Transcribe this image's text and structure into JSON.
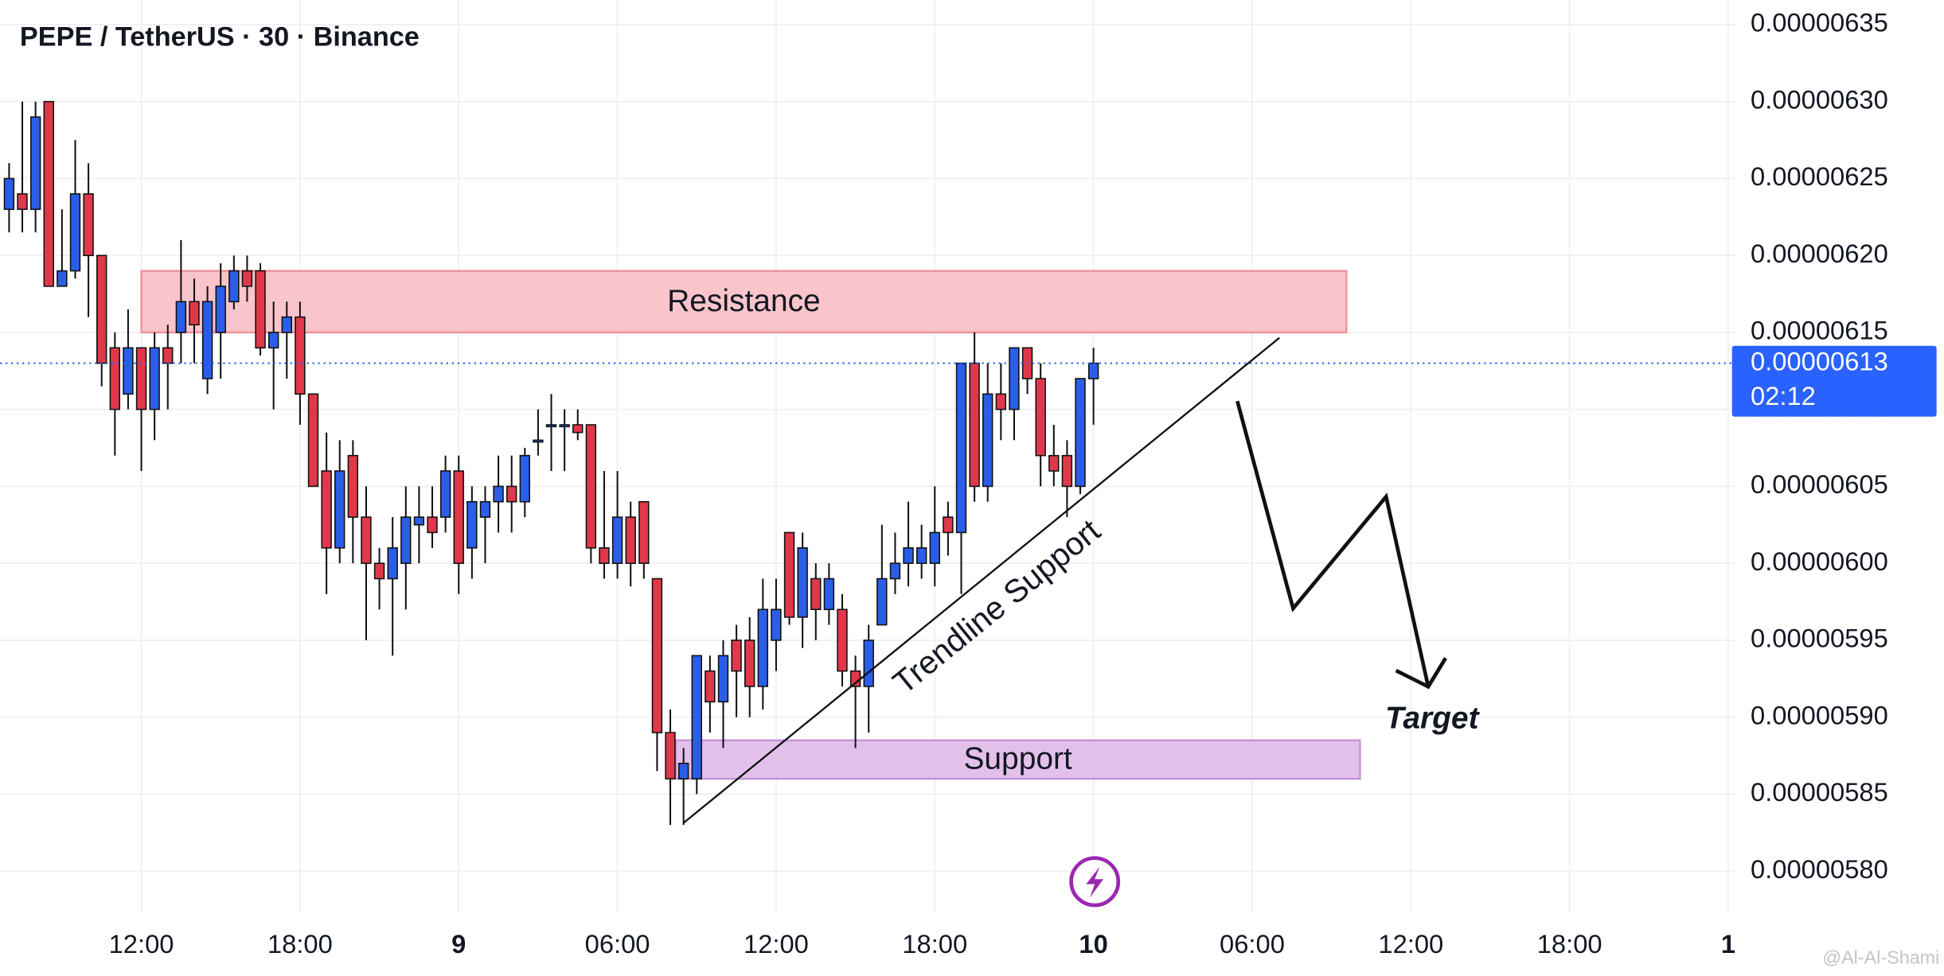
{
  "chart_data": {
    "type": "candlestick",
    "title": "PEPE / TetherUS · 30 · Binance",
    "up_color": "#2a5ee8",
    "down_color": "#e0384a",
    "categories": [
      "12:00",
      "18:00",
      "9",
      "06:00",
      "12:00",
      "18:00",
      "10",
      "06:00",
      "12:00",
      "18:00",
      "1"
    ],
    "ylim": [
      5.773e-06,
      6.366e-06
    ],
    "yticks": [
      {
        "value": 5.8e-06,
        "label": "0.00000580"
      },
      {
        "value": 5.85e-06,
        "label": "0.00000585"
      },
      {
        "value": 5.9e-06,
        "label": "0.00000590"
      },
      {
        "value": 5.95e-06,
        "label": "0.00000595"
      },
      {
        "value": 6e-06,
        "label": "0.00000600"
      },
      {
        "value": 6.05e-06,
        "label": "0.00000605"
      },
      {
        "value": 6.1e-06,
        "label": "0.00000610"
      },
      {
        "value": 6.15e-06,
        "label": "0.00000615"
      },
      {
        "value": 6.2e-06,
        "label": "0.00000620"
      },
      {
        "value": 6.25e-06,
        "label": "0.00000625"
      },
      {
        "value": 6.3e-06,
        "label": "0.00000630"
      },
      {
        "value": 6.35e-06,
        "label": "0.00000635"
      }
    ],
    "grid": true,
    "open": [
      6.23e-06,
      6.24e-06,
      6.23e-06,
      6.3e-06,
      6.18e-06,
      6.19e-06,
      6.24e-06,
      6.2e-06,
      6.14e-06,
      6.11e-06,
      6.14e-06,
      6.1e-06,
      6.14e-06,
      6.15e-06,
      6.17e-06,
      6.12e-06,
      6.15e-06,
      6.17e-06,
      6.19e-06,
      6.19e-06,
      6.14e-06,
      6.15e-06,
      6.16e-06,
      6.11e-06,
      6.06e-06,
      6.01e-06,
      6.07e-06,
      6.03e-06,
      6e-06,
      5.99e-06,
      6e-06,
      6.025e-06,
      6.03e-06,
      6.03e-06,
      6.06e-06,
      6.01e-06,
      6.03e-06,
      6.04e-06,
      6.05e-06,
      6.04e-06,
      6.08e-06,
      6.09e-06,
      6.09e-06,
      6.09e-06,
      6.09e-06,
      6.01e-06,
      6e-06,
      6.03e-06,
      6.04e-06,
      5.99e-06,
      5.89e-06,
      5.86e-06,
      5.86e-06,
      5.93e-06,
      5.91e-06,
      5.95e-06,
      5.95e-06,
      5.92e-06,
      5.95e-06,
      6.02e-06,
      5.965e-06,
      5.99e-06,
      5.97e-06,
      5.97e-06,
      5.93e-06,
      5.92e-06,
      5.96e-06,
      5.99e-06,
      6e-06,
      6e-06,
      6e-06,
      6.03e-06,
      6.02e-06,
      6.13e-06,
      6.05e-06,
      6.11e-06,
      6.1e-06,
      6.14e-06,
      6.12e-06,
      6.07e-06,
      6.07e-06,
      6.05e-06,
      6.12e-06
    ],
    "high": [
      6.26e-06,
      6.3e-06,
      6.3e-06,
      6.3e-06,
      6.23e-06,
      6.275e-06,
      6.26e-06,
      6.2e-06,
      6.15e-06,
      6.165e-06,
      6.14e-06,
      6.15e-06,
      6.155e-06,
      6.21e-06,
      6.185e-06,
      6.18e-06,
      6.195e-06,
      6.2e-06,
      6.2e-06,
      6.195e-06,
      6.17e-06,
      6.17e-06,
      6.17e-06,
      6.11e-06,
      6.085e-06,
      6.08e-06,
      6.08e-06,
      6.05e-06,
      6.01e-06,
      6.03e-06,
      6.05e-06,
      6.05e-06,
      6.05e-06,
      6.07e-06,
      6.07e-06,
      6.05e-06,
      6.05e-06,
      6.07e-06,
      6.07e-06,
      6.075e-06,
      6.1e-06,
      6.11e-06,
      6.1e-06,
      6.1e-06,
      6.09e-06,
      6.06e-06,
      6.06e-06,
      6.04e-06,
      6.04e-06,
      5.99e-06,
      5.905e-06,
      5.88e-06,
      5.94e-06,
      5.94e-06,
      5.95e-06,
      5.96e-06,
      5.965e-06,
      5.99e-06,
      5.99e-06,
      6.02e-06,
      6.02e-06,
      6e-06,
      6e-06,
      5.98e-06,
      5.94e-06,
      5.96e-06,
      6.025e-06,
      6.02e-06,
      6.04e-06,
      6.025e-06,
      6.05e-06,
      6.04e-06,
      6.13e-06,
      6.15e-06,
      6.13e-06,
      6.13e-06,
      6.14e-06,
      6.14e-06,
      6.13e-06,
      6.09e-06,
      6.08e-06,
      6.12e-06,
      6.14e-06
    ],
    "low": [
      6.215e-06,
      6.215e-06,
      6.215e-06,
      6.18e-06,
      6.18e-06,
      6.185e-06,
      6.16e-06,
      6.115e-06,
      6.07e-06,
      6.1e-06,
      6.06e-06,
      6.08e-06,
      6.1e-06,
      6.13e-06,
      6.13e-06,
      6.11e-06,
      6.12e-06,
      6.165e-06,
      6.17e-06,
      6.135e-06,
      6.1e-06,
      6.12e-06,
      6.09e-06,
      6.05e-06,
      5.98e-06,
      6e-06,
      6e-06,
      5.95e-06,
      5.97e-06,
      5.94e-06,
      5.97e-06,
      6e-06,
      6.01e-06,
      6.02e-06,
      5.98e-06,
      5.99e-06,
      6e-06,
      6.02e-06,
      6.02e-06,
      6.03e-06,
      6.07e-06,
      6.06e-06,
      6.06e-06,
      6.08e-06,
      6e-06,
      5.99e-06,
      5.99e-06,
      5.985e-06,
      5.99e-06,
      5.865e-06,
      5.83e-06,
      5.83e-06,
      5.85e-06,
      5.89e-06,
      5.88e-06,
      5.9e-06,
      5.9e-06,
      5.905e-06,
      5.93e-06,
      5.96e-06,
      5.945e-06,
      5.95e-06,
      5.96e-06,
      5.92e-06,
      5.88e-06,
      5.89e-06,
      5.96e-06,
      5.98e-06,
      5.985e-06,
      5.99e-06,
      5.985e-06,
      6.005e-06,
      5.98e-06,
      6.04e-06,
      6.04e-06,
      6.08e-06,
      6.08e-06,
      6.11e-06,
      6.05e-06,
      6.05e-06,
      6.03e-06,
      6.045e-06,
      6.09e-06
    ],
    "close": [
      6.25e-06,
      6.23e-06,
      6.29e-06,
      6.18e-06,
      6.19e-06,
      6.24e-06,
      6.2e-06,
      6.13e-06,
      6.1e-06,
      6.14e-06,
      6.1e-06,
      6.14e-06,
      6.13e-06,
      6.17e-06,
      6.155e-06,
      6.17e-06,
      6.18e-06,
      6.19e-06,
      6.18e-06,
      6.14e-06,
      6.15e-06,
      6.16e-06,
      6.11e-06,
      6.05e-06,
      6.01e-06,
      6.06e-06,
      6.03e-06,
      6e-06,
      5.99e-06,
      6.01e-06,
      6.03e-06,
      6.03e-06,
      6.02e-06,
      6.06e-06,
      6e-06,
      6.04e-06,
      6.04e-06,
      6.05e-06,
      6.04e-06,
      6.07e-06,
      6.08e-06,
      6.09e-06,
      6.09e-06,
      6.085e-06,
      6.01e-06,
      6e-06,
      6.03e-06,
      6e-06,
      6e-06,
      5.89e-06,
      5.86e-06,
      5.87e-06,
      5.94e-06,
      5.91e-06,
      5.94e-06,
      5.93e-06,
      5.92e-06,
      5.97e-06,
      5.97e-06,
      5.965e-06,
      6.01e-06,
      5.97e-06,
      5.99e-06,
      5.93e-06,
      5.92e-06,
      5.95e-06,
      5.99e-06,
      6e-06,
      6.01e-06,
      6.01e-06,
      6.02e-06,
      6.02e-06,
      6.13e-06,
      6.05e-06,
      6.11e-06,
      6.1e-06,
      6.14e-06,
      6.12e-06,
      6.07e-06,
      6.06e-06,
      6.05e-06,
      6.12e-06,
      6.13e-06
    ],
    "last_price": {
      "value": 6.13e-06,
      "label": "0.00000613"
    },
    "countdown": "02:12",
    "zones": [
      {
        "label": "Resistance",
        "range": [
          6.15e-06,
          6.19e-06
        ],
        "color": "#f9c4ca",
        "border": "#ef8f9b"
      },
      {
        "label": "Support",
        "range": [
          5.86e-06,
          5.885e-06
        ],
        "color": "#e2c0ea",
        "border": "#c690d6"
      }
    ],
    "annotations": {
      "trendline": "Trendline Support",
      "target": "Target",
      "watermark": "@Al-Al-Shami"
    }
  }
}
